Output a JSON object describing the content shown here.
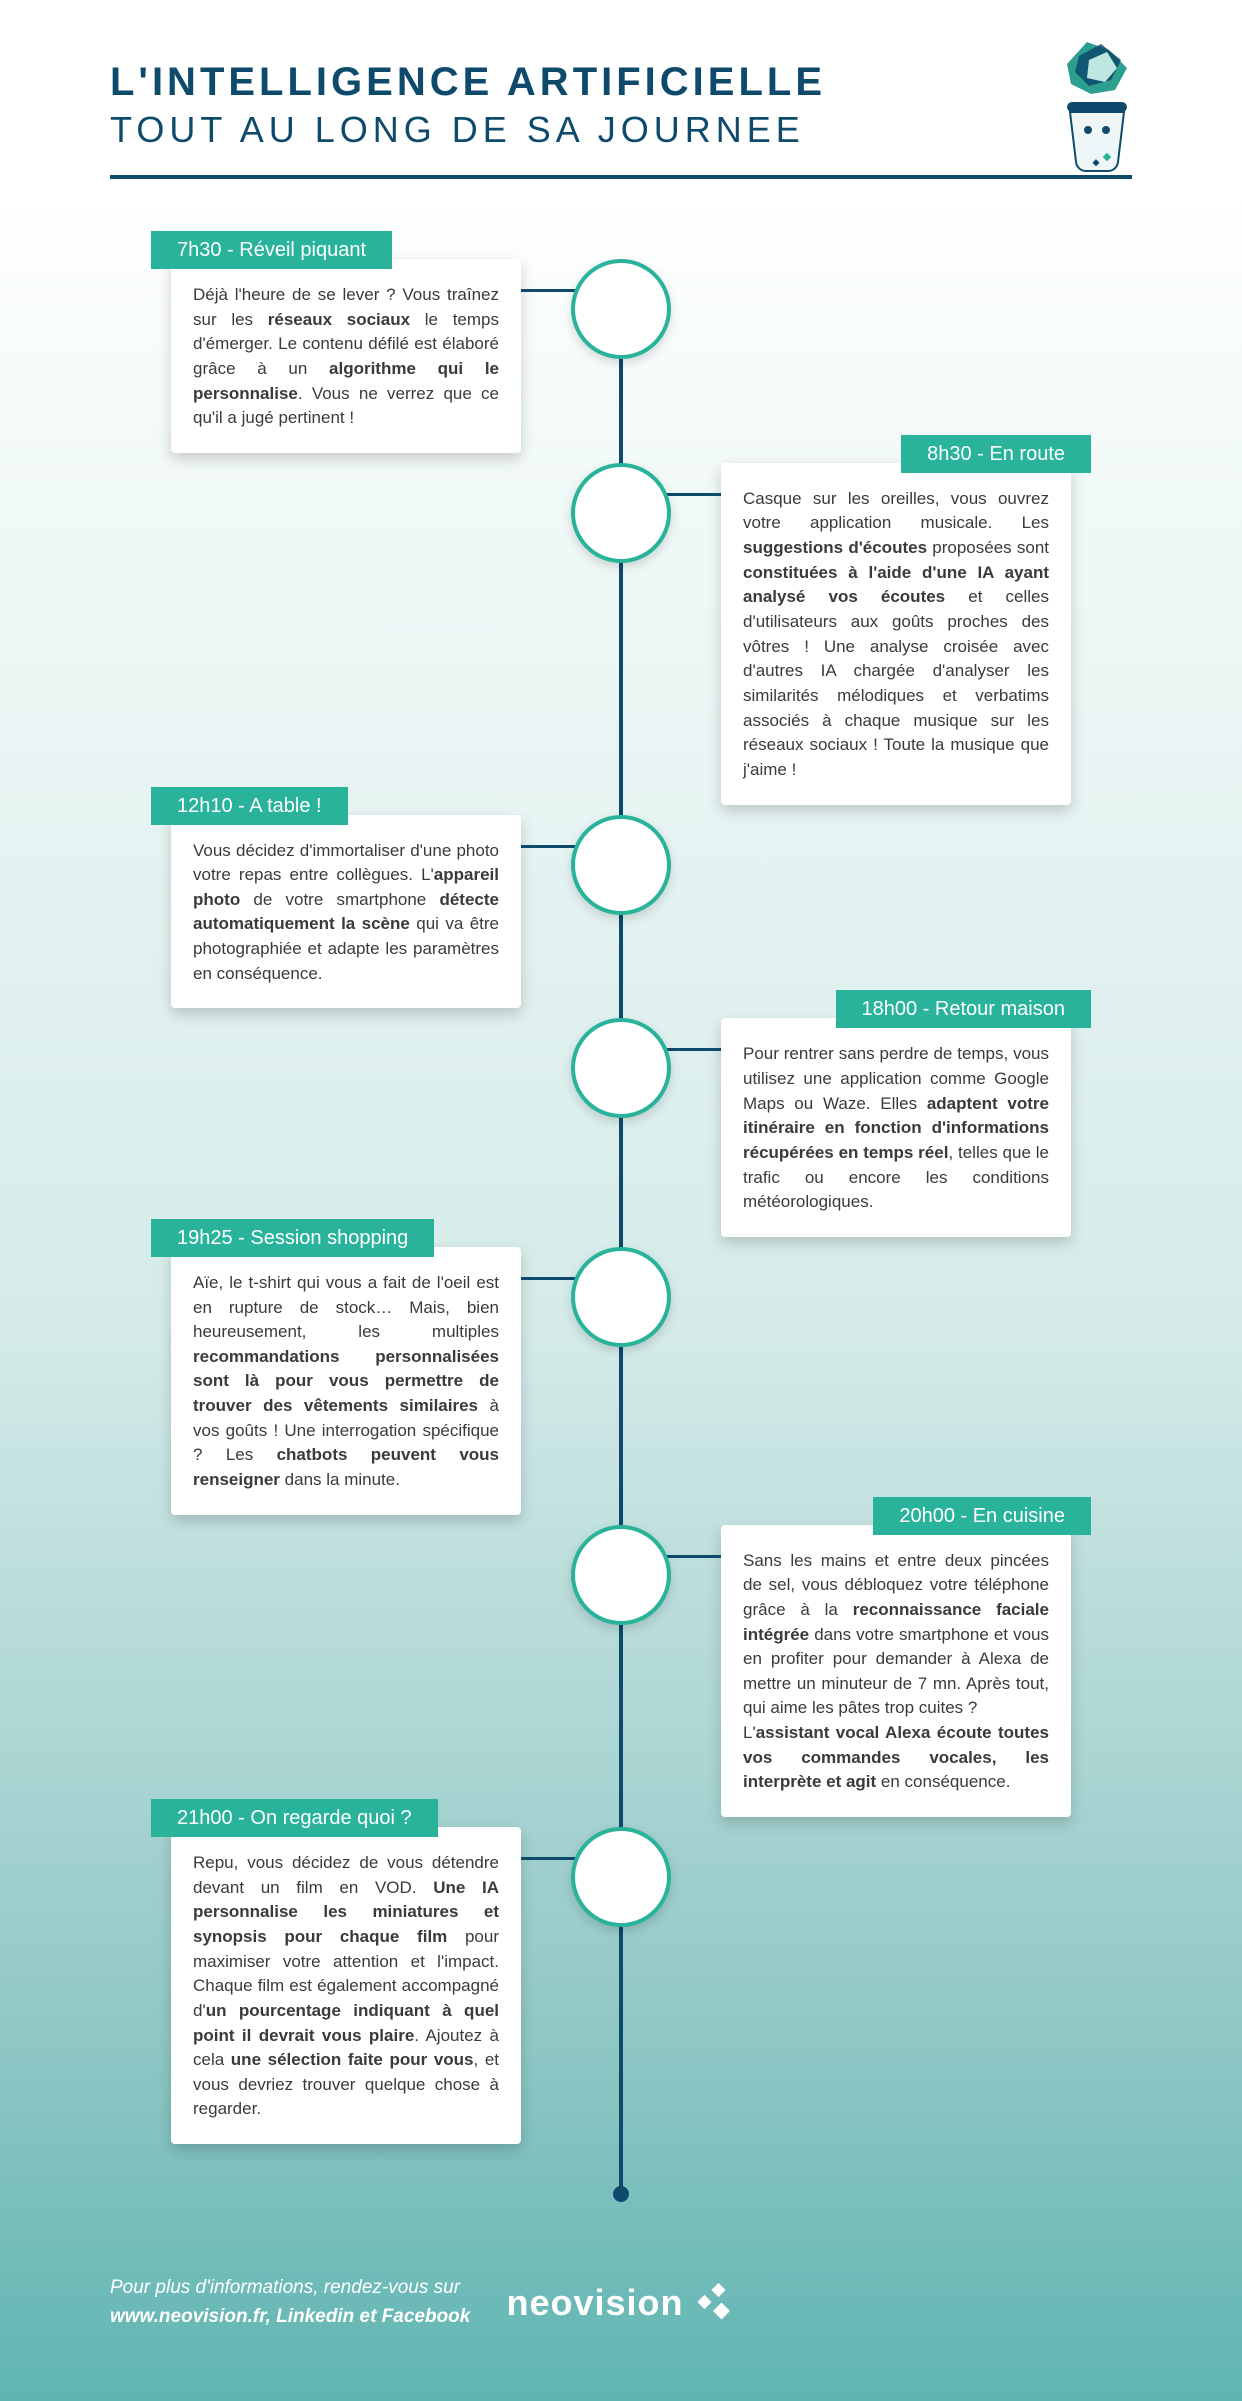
{
  "colors": {
    "accent": "#29b39a",
    "navy": "#0e4a6c",
    "card_bg": "#ffffff",
    "text": "#3a3a3a",
    "bg_gradient": [
      "#ffffff",
      "#f3faf9",
      "#d5ebe9",
      "#8fc7c5",
      "#5fb5b2"
    ]
  },
  "header": {
    "title_main": "L'INTELLIGENCE ARTIFICIELLE",
    "title_sub": "TOUT AU LONG DE SA JOURNEE"
  },
  "steps": [
    {
      "side": "left",
      "icon": "phone-social",
      "banner": "7h30 - Réveil piquant",
      "body_html": "Déjà l'heure de se lever ? Vous traînez sur les <b>réseaux sociaux</b> le temps d'émerger. Le contenu défilé est élaboré grâce à un <b>algorithme qui le personnalise</b>. Vous ne verrez que ce qu'il a jugé pertinent !"
    },
    {
      "side": "right",
      "icon": "headphones",
      "banner": "8h30 - En route",
      "body_html": "Casque sur les oreilles, vous ouvrez votre application musicale. Les <b>suggestions d'écoutes</b> proposées sont <b>constituées à l'aide d'une IA ayant analysé vos écoutes</b> et celles d'utilisateurs aux goûts proches des vôtres ! Une analyse croisée avec d'autres IA chargée d'analyser les similarités mélodiques et verbatims associés à chaque musique sur les réseaux sociaux ! Toute la musique que j'aime !"
    },
    {
      "side": "left",
      "icon": "phone-camera",
      "banner": "12h10 - A table !",
      "body_html": "Vous décidez d'immortaliser d'une photo votre repas entre collègues. L'<b>appareil photo</b> de votre smartphone <b>détecte automatiquement la scène</b> qui va être photographiée et adapte les paramètres en conséquence."
    },
    {
      "side": "right",
      "icon": "map-pin",
      "banner": "18h00 - Retour maison",
      "body_html": "Pour rentrer sans perdre de temps, vous utilisez une application comme Google Maps ou Waze. Elles <b>adaptent votre itinéraire en fonction d'informations récupérées en temps réel</b>, telles que le trafic ou encore les conditions météorologiques."
    },
    {
      "side": "left",
      "icon": "monitor-cart",
      "banner": "19h25 - Session shopping",
      "body_html": "Aïe, le t-shirt qui vous a fait de l'oeil est en rupture de stock… Mais, bien heureusement, les multiples <b>recommandations personnalisées sont là pour vous permettre de trouver des vêtements similaires</b> à vos goûts ! Une interrogation spécifique ? Les <b>chatbots peuvent vous renseigner</b> dans la minute."
    },
    {
      "side": "right",
      "icon": "face-voice",
      "banner": "20h00 - En cuisine",
      "body_html": "Sans les mains et entre deux pincées de sel, vous débloquez votre téléphone grâce à la <b>reconnaissance faciale intégrée</b> dans votre smartphone et vous en profiter pour demander à Alexa de mettre un minuteur de 7 mn. Après tout, qui aime les pâtes trop cuites ?<br>L'<b>assistant vocal Alexa écoute toutes vos commandes vocales, les interprète et agit</b> en conséquence."
    },
    {
      "side": "left",
      "icon": "tv-speakers",
      "banner": "21h00 - On regarde quoi ?",
      "body_html": "Repu, vous décidez de vous détendre devant un film en VOD. <b>Une IA personnalise les miniatures et synopsis pour chaque film</b> pour maximiser votre attention et l'impact. Chaque film est également accompagné d'<b>un pourcentage indiquant à quel point il devrait vous plaire</b>. Ajoutez à cela <b>une sélection faite pour vous</b>, et vous devriez trouver quelque chose à regarder."
    }
  ],
  "footer": {
    "line1": "Pour plus d'informations, rendez-vous sur",
    "line2": "www.neovision.fr, Linkedin et Facebook",
    "brand": "neovision"
  }
}
